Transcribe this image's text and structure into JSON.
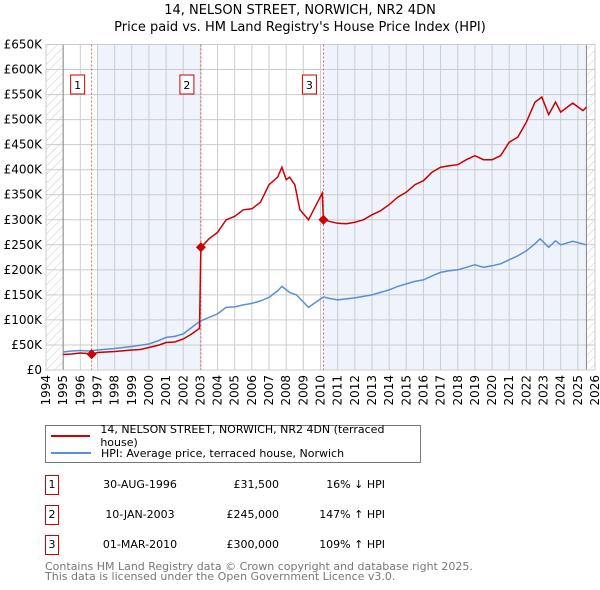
{
  "title_line1": "14, NELSON STREET, NORWICH, NR2 4DN",
  "title_line2": "Price paid vs. HM Land Registry's House Price Index (HPI)",
  "colors": {
    "property": "#cc0000",
    "hpi": "#5b8fd4",
    "shade": "#eef3fc",
    "grid": "#cccccc"
  },
  "chart_data": {
    "type": "line",
    "xlim": [
      1994,
      2026
    ],
    "ylim": [
      0,
      650
    ],
    "x_ticks": [
      "1994",
      "1995",
      "1996",
      "1997",
      "1998",
      "1999",
      "2000",
      "2001",
      "2002",
      "2003",
      "2004",
      "2005",
      "2006",
      "2007",
      "2008",
      "2009",
      "2010",
      "2011",
      "2012",
      "2013",
      "2014",
      "2015",
      "2016",
      "2017",
      "2018",
      "2019",
      "2020",
      "2021",
      "2022",
      "2023",
      "2024",
      "2025",
      "2026"
    ],
    "y_ticks": [
      {
        "v": 0,
        "label": "£0"
      },
      {
        "v": 50,
        "label": "£50K"
      },
      {
        "v": 100,
        "label": "£100K"
      },
      {
        "v": 150,
        "label": "£150K"
      },
      {
        "v": 200,
        "label": "£200K"
      },
      {
        "v": 250,
        "label": "£250K"
      },
      {
        "v": 300,
        "label": "£300K"
      },
      {
        "v": 350,
        "label": "£350K"
      },
      {
        "v": 400,
        "label": "£400K"
      },
      {
        "v": 450,
        "label": "£450K"
      },
      {
        "v": 500,
        "label": "£500K"
      },
      {
        "v": 550,
        "label": "£550K"
      },
      {
        "v": 600,
        "label": "£600K"
      },
      {
        "v": 650,
        "label": "£650K"
      }
    ],
    "grid": true,
    "hatched_ranges": [
      [
        1994,
        1995
      ],
      [
        2025.5,
        2026
      ]
    ],
    "shaded_ranges": [
      [
        1997,
        2003.03
      ],
      [
        2010.17,
        2025.5
      ]
    ],
    "series": [
      {
        "name": "14, NELSON STREET, NORWICH, NR2 4DN (terraced house)",
        "color": "#cc0000",
        "points": [
          [
            1995,
            31
          ],
          [
            1995.5,
            32
          ],
          [
            1996,
            34
          ],
          [
            1996.4,
            33
          ],
          [
            1996.66,
            31.5
          ],
          [
            1997,
            35
          ],
          [
            1998,
            37
          ],
          [
            1999,
            40
          ],
          [
            1999.5,
            41
          ],
          [
            2000,
            45
          ],
          [
            2000.6,
            50
          ],
          [
            2001,
            55
          ],
          [
            2001.5,
            56
          ],
          [
            2002,
            62
          ],
          [
            2002.5,
            72
          ],
          [
            2002.95,
            83
          ],
          [
            2003.03,
            245
          ],
          [
            2003.5,
            262
          ],
          [
            2004,
            275
          ],
          [
            2004.5,
            300
          ],
          [
            2005,
            307
          ],
          [
            2005.5,
            320
          ],
          [
            2006,
            322
          ],
          [
            2006.5,
            335
          ],
          [
            2007,
            370
          ],
          [
            2007.5,
            385
          ],
          [
            2007.75,
            405
          ],
          [
            2008,
            380
          ],
          [
            2008.2,
            385
          ],
          [
            2008.5,
            370
          ],
          [
            2008.8,
            320
          ],
          [
            2009.3,
            300
          ],
          [
            2010.1,
            353
          ],
          [
            2010.17,
            300
          ],
          [
            2010.5,
            297
          ],
          [
            2011,
            293
          ],
          [
            2011.5,
            292
          ],
          [
            2012,
            295
          ],
          [
            2012.5,
            300
          ],
          [
            2013,
            310
          ],
          [
            2013.5,
            318
          ],
          [
            2014,
            330
          ],
          [
            2014.5,
            345
          ],
          [
            2015,
            355
          ],
          [
            2015.5,
            370
          ],
          [
            2016,
            378
          ],
          [
            2016.5,
            395
          ],
          [
            2017,
            405
          ],
          [
            2017.5,
            408
          ],
          [
            2018,
            410
          ],
          [
            2018.5,
            420
          ],
          [
            2019,
            428
          ],
          [
            2019.5,
            420
          ],
          [
            2020,
            420
          ],
          [
            2020.5,
            428
          ],
          [
            2021,
            455
          ],
          [
            2021.5,
            465
          ],
          [
            2022,
            495
          ],
          [
            2022.5,
            535
          ],
          [
            2022.9,
            545
          ],
          [
            2023.3,
            510
          ],
          [
            2023.7,
            535
          ],
          [
            2024,
            515
          ],
          [
            2024.7,
            533
          ],
          [
            2025.3,
            518
          ],
          [
            2025.5,
            525
          ]
        ]
      },
      {
        "name": "HPI: Average price, terraced house, Norwich",
        "color": "#5b8fd4",
        "points": [
          [
            1995,
            36
          ],
          [
            1995.5,
            38
          ],
          [
            1996,
            39
          ],
          [
            1996.5,
            38
          ],
          [
            1997,
            40
          ],
          [
            1998,
            43
          ],
          [
            1999,
            47
          ],
          [
            2000,
            52
          ],
          [
            2000.5,
            58
          ],
          [
            2001,
            65
          ],
          [
            2001.5,
            67
          ],
          [
            2002,
            72
          ],
          [
            2002.5,
            85
          ],
          [
            2003,
            98
          ],
          [
            2003.5,
            105
          ],
          [
            2004,
            112
          ],
          [
            2004.5,
            125
          ],
          [
            2005,
            126
          ],
          [
            2005.5,
            130
          ],
          [
            2006,
            133
          ],
          [
            2006.5,
            138
          ],
          [
            2007,
            145
          ],
          [
            2007.5,
            158
          ],
          [
            2007.75,
            167
          ],
          [
            2008.2,
            155
          ],
          [
            2008.6,
            150
          ],
          [
            2009.3,
            125
          ],
          [
            2010.17,
            146
          ],
          [
            2010.5,
            143
          ],
          [
            2011,
            140
          ],
          [
            2011.5,
            142
          ],
          [
            2012,
            144
          ],
          [
            2012.5,
            147
          ],
          [
            2013,
            150
          ],
          [
            2013.5,
            155
          ],
          [
            2014,
            160
          ],
          [
            2014.5,
            167
          ],
          [
            2015,
            172
          ],
          [
            2015.5,
            177
          ],
          [
            2016,
            180
          ],
          [
            2016.5,
            188
          ],
          [
            2017,
            195
          ],
          [
            2017.5,
            198
          ],
          [
            2018,
            200
          ],
          [
            2018.5,
            205
          ],
          [
            2019,
            210
          ],
          [
            2019.5,
            205
          ],
          [
            2020,
            208
          ],
          [
            2020.5,
            212
          ],
          [
            2021,
            220
          ],
          [
            2021.5,
            228
          ],
          [
            2022,
            238
          ],
          [
            2022.5,
            252
          ],
          [
            2022.8,
            262
          ],
          [
            2023.3,
            245
          ],
          [
            2023.7,
            258
          ],
          [
            2024,
            250
          ],
          [
            2024.7,
            257
          ],
          [
            2025.5,
            250
          ]
        ]
      }
    ],
    "sales": [
      {
        "num": "1",
        "x": 1996.66,
        "y": 31.5
      },
      {
        "num": "2",
        "x": 2003.03,
        "y": 245
      },
      {
        "num": "3",
        "x": 2010.17,
        "y": 300
      }
    ]
  },
  "legend": {
    "property": "14, NELSON STREET, NORWICH, NR2 4DN (terraced house)",
    "hpi": "HPI: Average price, terraced house, Norwich"
  },
  "transactions": [
    {
      "num": "1",
      "date": "30-AUG-1996",
      "price": "£31,500",
      "hpi": "16% ↓ HPI"
    },
    {
      "num": "2",
      "date": "10-JAN-2003",
      "price": "£245,000",
      "hpi": "147% ↑ HPI"
    },
    {
      "num": "3",
      "date": "01-MAR-2010",
      "price": "£300,000",
      "hpi": "109% ↑ HPI"
    }
  ],
  "footer": {
    "line1": "Contains HM Land Registry data © Crown copyright and database right 2025.",
    "line2": "This data is licensed under the Open Government Licence v3.0."
  }
}
